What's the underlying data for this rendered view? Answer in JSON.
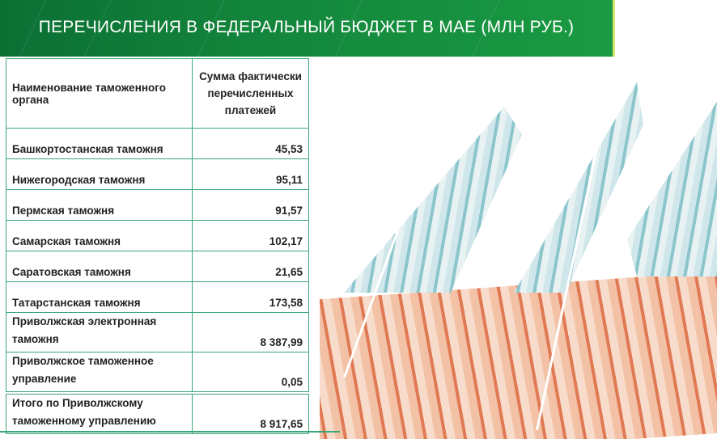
{
  "title": "ПЕРЕЧИСЛЕНИЯ В ФЕДЕРАЛЬНЫЙ БЮДЖЕТ В МАЕ (МЛН РУБ.)",
  "colors": {
    "header_green": "#14893d",
    "table_border": "#3aa676"
  },
  "table": {
    "headers": [
      "Наименование таможенного органа",
      "Сумма фактически перечисленных платежей"
    ],
    "rows": [
      {
        "name": "Башкортостанская таможня",
        "value": "45,53"
      },
      {
        "name": "Нижегородская таможня",
        "value": "95,11"
      },
      {
        "name": "Пермская таможня",
        "value": "91,57"
      },
      {
        "name": "Самарская таможня",
        "value": "102,17"
      },
      {
        "name": "Саратовская таможня",
        "value": "21,65"
      },
      {
        "name": "Татарстанская таможня",
        "value": "173,58"
      },
      {
        "name": "Приволжская электронная таможня",
        "value": "8 387,99"
      },
      {
        "name": "Приволжское таможенное управление",
        "value": "0,05"
      }
    ],
    "total": {
      "name": "Итого по Приволжскому таможенному управлению",
      "value": "8 917,65"
    }
  }
}
